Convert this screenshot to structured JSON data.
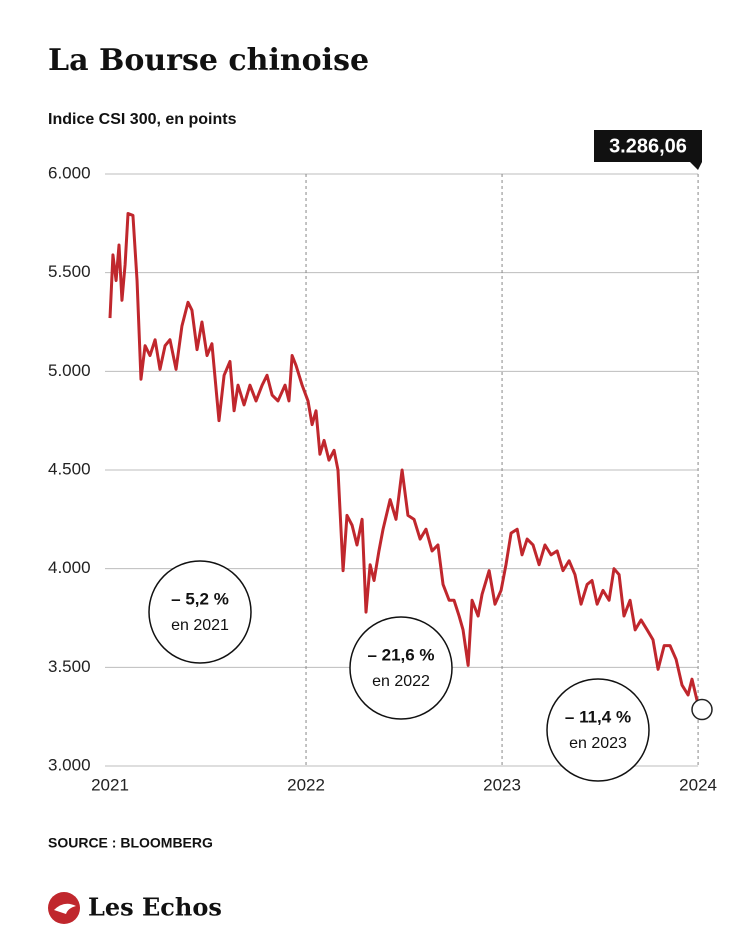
{
  "chart_data": {
    "type": "line",
    "title": "La Bourse chinoise",
    "subtitle": "Indice CSI 300, en points",
    "source": "SOURCE : BLOOMBERG",
    "logo": "Les Echos",
    "xlim": [
      2021,
      2024.02
    ],
    "xticks": [
      2021,
      2022,
      2023,
      2024
    ],
    "ylim": [
      3000,
      6000
    ],
    "yticks": [
      {
        "value": 3000,
        "label": "3.000"
      },
      {
        "value": 3500,
        "label": "3.500"
      },
      {
        "value": 4000,
        "label": "4.000"
      },
      {
        "value": 4500,
        "label": "4.500"
      },
      {
        "value": 5000,
        "label": "5.000"
      },
      {
        "value": 5500,
        "label": "5.500"
      },
      {
        "value": 6000,
        "label": "6.000"
      }
    ],
    "grid": true,
    "x": [
      2021.0,
      2021.015,
      2021.031,
      2021.046,
      2021.061,
      2021.077,
      2021.092,
      2021.117,
      2021.138,
      2021.158,
      2021.179,
      2021.204,
      2021.23,
      2021.255,
      2021.281,
      2021.306,
      2021.337,
      2021.367,
      2021.398,
      2021.418,
      2021.444,
      2021.469,
      2021.495,
      2021.52,
      2021.556,
      2021.582,
      2021.612,
      2021.633,
      2021.653,
      2021.684,
      2021.714,
      2021.745,
      2021.776,
      2021.801,
      2021.827,
      2021.857,
      2021.893,
      2021.913,
      2021.929,
      2021.949,
      2021.98,
      2022.01,
      2022.031,
      2022.051,
      2022.071,
      2022.092,
      2022.117,
      2022.143,
      2022.163,
      2022.189,
      2022.209,
      2022.235,
      2022.26,
      2022.286,
      2022.306,
      2022.327,
      2022.347,
      2022.372,
      2022.393,
      2022.429,
      2022.459,
      2022.49,
      2022.52,
      2022.551,
      2022.582,
      2022.612,
      2022.643,
      2022.673,
      2022.699,
      2022.73,
      2022.755,
      2022.781,
      2022.801,
      2022.827,
      2022.847,
      2022.878,
      2022.898,
      2022.934,
      2022.964,
      2022.995,
      2023.02,
      2023.046,
      2023.077,
      2023.102,
      2023.128,
      2023.158,
      2023.189,
      2023.219,
      2023.25,
      2023.281,
      2023.311,
      2023.342,
      2023.372,
      2023.403,
      2023.434,
      2023.459,
      2023.485,
      2023.515,
      2023.546,
      2023.571,
      2023.597,
      2023.622,
      2023.653,
      2023.679,
      2023.709,
      2023.74,
      2023.77,
      2023.796,
      2023.827,
      2023.857,
      2023.888,
      2023.918,
      2023.949,
      2023.969,
      2024.0,
      2024.02
    ],
    "series": [
      {
        "name": "CSI 300",
        "color": "#c0272d",
        "values": [
          5270,
          5590,
          5460,
          5640,
          5360,
          5540,
          5800,
          5790,
          5460,
          4960,
          5130,
          5080,
          5160,
          5010,
          5130,
          5160,
          5010,
          5230,
          5350,
          5310,
          5110,
          5250,
          5080,
          5140,
          4750,
          4980,
          5050,
          4800,
          4930,
          4830,
          4930,
          4850,
          4930,
          4980,
          4880,
          4850,
          4930,
          4850,
          5080,
          5030,
          4930,
          4850,
          4730,
          4800,
          4580,
          4650,
          4550,
          4600,
          4500,
          3990,
          4270,
          4220,
          4120,
          4250,
          3780,
          4020,
          3940,
          4090,
          4200,
          4350,
          4250,
          4500,
          4270,
          4250,
          4150,
          4200,
          4090,
          4120,
          3920,
          3840,
          3840,
          3760,
          3690,
          3510,
          3840,
          3760,
          3870,
          3990,
          3820,
          3890,
          4020,
          4180,
          4200,
          4070,
          4150,
          4120,
          4020,
          4120,
          4070,
          4090,
          3990,
          4040,
          3970,
          3820,
          3920,
          3940,
          3820,
          3890,
          3840,
          4000,
          3970,
          3760,
          3840,
          3690,
          3740,
          3690,
          3640,
          3490,
          3610,
          3610,
          3540,
          3410,
          3360,
          3440,
          3310,
          3286.06
        ],
        "value_labels": [
          null,
          null,
          null,
          null,
          null,
          null,
          null,
          null,
          null,
          null,
          null,
          null,
          null,
          null,
          null,
          null,
          null,
          null,
          null,
          null,
          null,
          null,
          null,
          null,
          null,
          null,
          null,
          null,
          null,
          null,
          null,
          null,
          null,
          null,
          null,
          null,
          null,
          null,
          null,
          null,
          null,
          null,
          null,
          null,
          null,
          null,
          null,
          null,
          null,
          null,
          null,
          null,
          null,
          null,
          null,
          null,
          null,
          null,
          null,
          null,
          null,
          null,
          null,
          null,
          null,
          null,
          null,
          null,
          null,
          null,
          null,
          null,
          null,
          null,
          null,
          null,
          null,
          null,
          null,
          null,
          null,
          null,
          null,
          null,
          null,
          null,
          null,
          null,
          null,
          null,
          null,
          null,
          null,
          null,
          null,
          null,
          null,
          null,
          null,
          null,
          null,
          null,
          null,
          null,
          null,
          null,
          null,
          null,
          null,
          null,
          null,
          null,
          null,
          null,
          null,
          "3.286,06"
        ]
      }
    ],
    "annotations": [
      {
        "text": "– 5,2 %",
        "subtext": "en 2021"
      },
      {
        "text": "– 21,6 %",
        "subtext": "en 2022"
      },
      {
        "text": "– 11,4 %",
        "subtext": "en 2023"
      }
    ]
  }
}
